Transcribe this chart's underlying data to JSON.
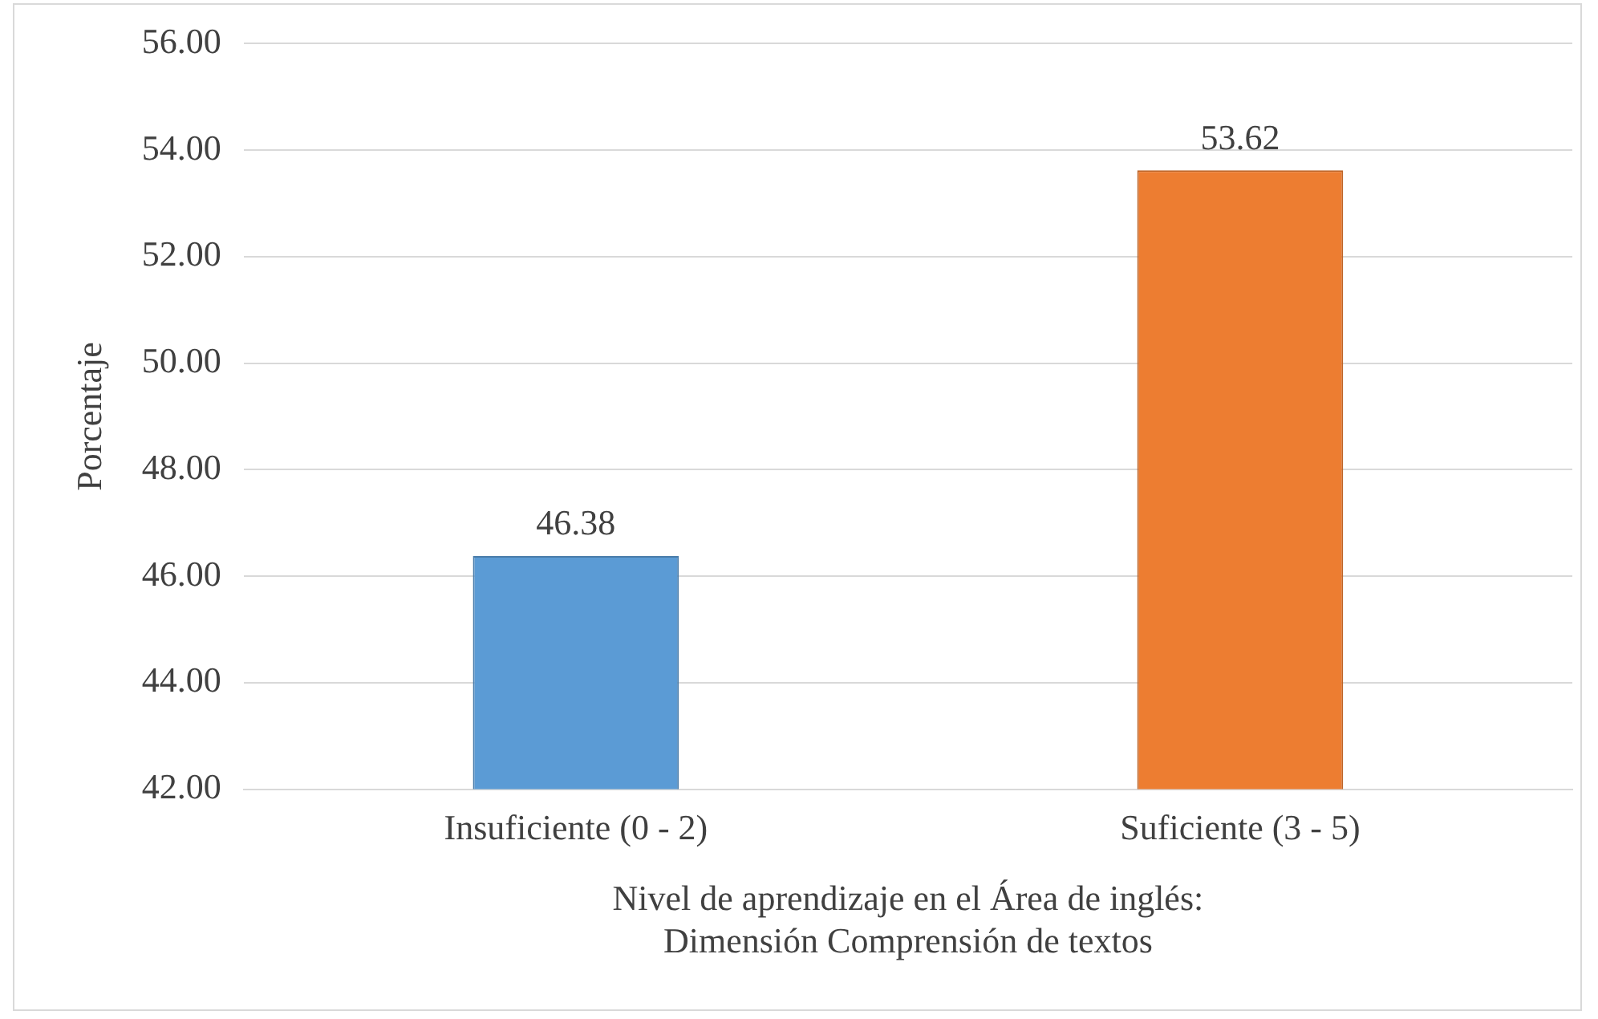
{
  "chart_data": {
    "type": "bar",
    "categories": [
      "Insuficiente (0 - 2)",
      "Suficiente (3 - 5)"
    ],
    "values": [
      46.38,
      53.62
    ],
    "colors": [
      "#5b9bd5",
      "#ed7d31"
    ],
    "data_labels": true,
    "xlabel": "Nivel de aprendizaje en el Área de inglés:\nDimensión Comprensión de textos",
    "ylabel": "Porcentaje",
    "ylim": [
      42,
      56
    ],
    "yticks": [
      {
        "value": 42,
        "label": "42.00"
      },
      {
        "value": 44,
        "label": "44.00"
      },
      {
        "value": 46,
        "label": "46.00"
      },
      {
        "value": 48,
        "label": "48.00"
      },
      {
        "value": 50,
        "label": "50.00"
      },
      {
        "value": 52,
        "label": "52.00"
      },
      {
        "value": 54,
        "label": "54.00"
      },
      {
        "value": 56,
        "label": "56.00"
      }
    ],
    "grid": "y"
  }
}
